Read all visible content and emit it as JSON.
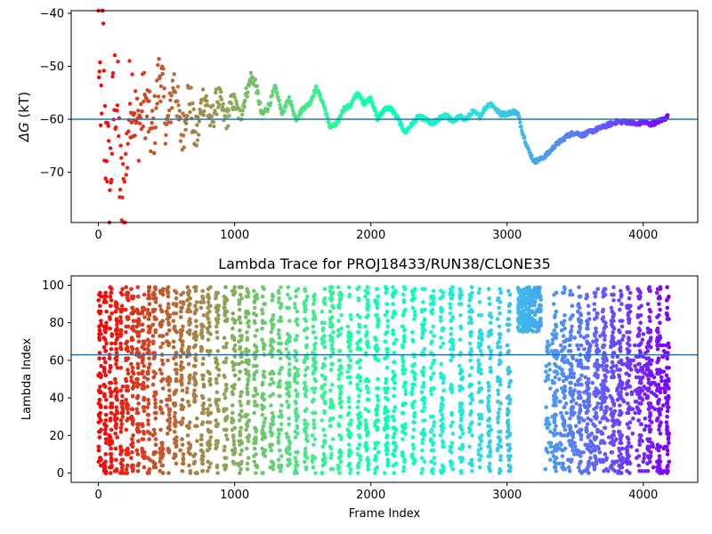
{
  "chart_data": [
    {
      "type": "scatter",
      "title": "",
      "xlabel": "",
      "ylabel_symbol": "ΔG",
      "ylabel_unit": " (kT)",
      "xlim": [
        -200,
        4400
      ],
      "ylim": [
        -79.5,
        -39.5
      ],
      "xticks": [
        0,
        1000,
        2000,
        3000,
        4000
      ],
      "yticks": [
        -70,
        -60,
        -50,
        -40
      ],
      "hline": -60,
      "colormap": "rainbow (red at start → violet at end)",
      "legend": "none",
      "trace": {
        "x": [
          0,
          15,
          30,
          45,
          60,
          80,
          100,
          130,
          160,
          200,
          250,
          300,
          350,
          400,
          450,
          500,
          550,
          600,
          650,
          700,
          750,
          800,
          850,
          900,
          950,
          1000,
          1050,
          1100,
          1120,
          1150,
          1200,
          1250,
          1300,
          1350,
          1400,
          1450,
          1500,
          1550,
          1600,
          1650,
          1700,
          1750,
          1800,
          1850,
          1900,
          1950,
          2000,
          2050,
          2100,
          2150,
          2200,
          2250,
          2300,
          2350,
          2400,
          2450,
          2500,
          2550,
          2600,
          2650,
          2700,
          2750,
          2800,
          2850,
          2880,
          2950,
          3000,
          3050,
          3080,
          3120,
          3160,
          3200,
          3250,
          3300,
          3350,
          3400,
          3450,
          3500,
          3550,
          3600,
          3650,
          3700,
          3750,
          3800,
          3850,
          3900,
          3950,
          4000,
          4050,
          4100,
          4150,
          4180
        ],
        "y": [
          -40,
          -75,
          -50,
          -70,
          -58,
          -65,
          -60,
          -62,
          -72,
          -65,
          -60,
          -55,
          -63,
          -58,
          -55,
          -58,
          -56,
          -60,
          -58,
          -61,
          -59,
          -58,
          -58,
          -58,
          -58.5,
          -58,
          -58,
          -55,
          -52,
          -52,
          -60,
          -57,
          -54,
          -59,
          -56,
          -60,
          -58,
          -57,
          -54,
          -57,
          -61.5,
          -61,
          -58,
          -57.5,
          -55,
          -57,
          -56,
          -60,
          -58,
          -58,
          -60,
          -62.5,
          -61,
          -59.5,
          -60,
          -61,
          -60,
          -59,
          -60.5,
          -59.5,
          -60,
          -58.5,
          -59.5,
          -57.5,
          -57,
          -59,
          -59,
          -58.5,
          -59,
          -63,
          -66,
          -68,
          -67.5,
          -66.5,
          -65,
          -64,
          -63,
          -62.5,
          -63,
          -62.5,
          -62,
          -61.5,
          -61,
          -60.5,
          -60.5,
          -60.5,
          -61,
          -60.5,
          -61,
          -60.5,
          -60,
          -59.5
        ]
      },
      "early_oscillation_amplitude": [
        [
          0,
          16
        ],
        [
          150,
          14
        ],
        [
          300,
          9
        ],
        [
          500,
          6
        ],
        [
          700,
          5
        ],
        [
          900,
          3
        ],
        [
          1100,
          1.5
        ],
        [
          1300,
          0.5
        ],
        [
          4200,
          0.3
        ]
      ]
    },
    {
      "type": "scatter",
      "title": "Lambda Trace for PROJ18433/RUN38/CLONE35",
      "xlabel": "Frame Index",
      "ylabel": "Lambda Index",
      "xlim": [
        -200,
        4400
      ],
      "ylim": [
        -5,
        105
      ],
      "xticks": [
        0,
        1000,
        2000,
        3000,
        4000
      ],
      "yticks": [
        0,
        20,
        40,
        60,
        80,
        100
      ],
      "hline": 63,
      "colormap": "rainbow (red at start → violet at end)",
      "legend": "none",
      "x_range_of_frames": [
        0,
        4180
      ],
      "lambda_range": [
        0,
        99
      ],
      "sweep_columns": [
        0,
        40,
        80,
        120,
        160,
        200,
        240,
        280,
        320,
        360,
        400,
        450,
        500,
        550,
        600,
        650,
        700,
        750,
        800,
        860,
        920,
        980,
        1030,
        1080,
        1140,
        1200,
        1260,
        1320,
        1380,
        1440,
        1510,
        1570,
        1640,
        1700,
        1760,
        1830,
        1900,
        1960,
        2030,
        2100,
        2160,
        2230,
        2300,
        2370,
        2440,
        2510,
        2580,
        2650,
        2720,
        2790,
        2860,
        2930,
        3000,
        3340,
        3400,
        3460,
        3520,
        3580,
        3640,
        3700,
        3760,
        3820,
        3880,
        3960,
        4030,
        4100,
        4170
      ],
      "top_cluster": {
        "x_range": [
          3080,
          3250
        ],
        "lambda_range": [
          75,
          99
        ]
      },
      "gap_bands": [
        {
          "x_range": [
            3250,
            3300
          ],
          "lambda_range": [
            0,
            99
          ],
          "density": 0.1
        }
      ]
    }
  ]
}
